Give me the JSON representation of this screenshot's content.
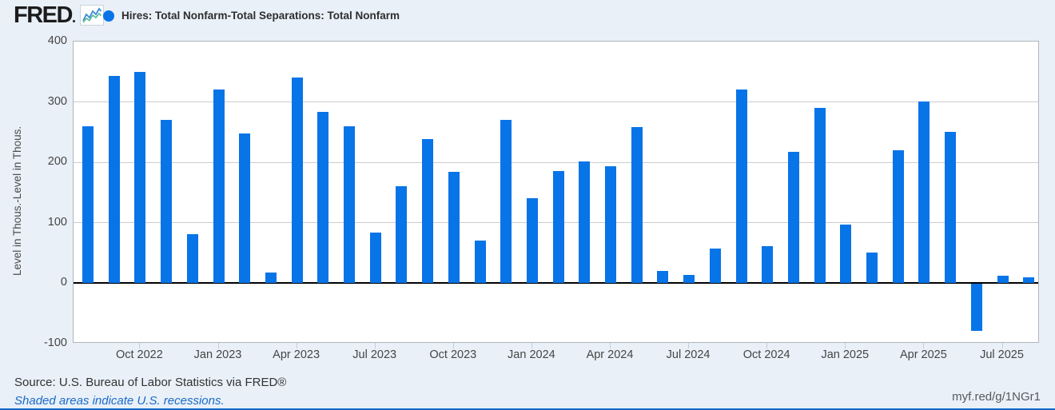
{
  "colors": {
    "bar_blue": "#0774e8",
    "page_background": "#e9f0f8",
    "link_blue": "#1b6ac9",
    "zero_line": "#000000",
    "gridline": "#cccccc",
    "bottom_border_blue": "#1567c8"
  },
  "header": {
    "logo_text": "FRED",
    "logo_icon": "fred-sparkline-icon",
    "legend_marker_color": "#0774e8",
    "series_title": "Hires: Total Nonfarm-Total Separations: Total Nonfarm"
  },
  "chart_data": {
    "type": "bar",
    "title": "Hires: Total Nonfarm-Total Separations: Total Nonfarm",
    "xlabel": "",
    "ylabel": "Level in Thous.-Level in Thous.",
    "ylim": [
      -100,
      400
    ],
    "y_ticks": [
      400,
      300,
      200,
      100,
      0,
      -100
    ],
    "gridline_values": [
      300,
      200,
      100
    ],
    "grid": true,
    "legend_position": "top-left",
    "bar_color": "#0774e8",
    "categories": [
      "Aug 2022",
      "Sep 2022",
      "Oct 2022",
      "Nov 2022",
      "Dec 2022",
      "Jan 2023",
      "Feb 2023",
      "Mar 2023",
      "Apr 2023",
      "May 2023",
      "Jun 2023",
      "Jul 2023",
      "Aug 2023",
      "Sep 2023",
      "Oct 2023",
      "Nov 2023",
      "Dec 2023",
      "Jan 2024",
      "Feb 2024",
      "Mar 2024",
      "Apr 2024",
      "May 2024",
      "Jun 2024",
      "Jul 2024",
      "Aug 2024",
      "Sep 2024",
      "Oct 2024",
      "Nov 2024",
      "Dec 2024",
      "Jan 2025",
      "Feb 2025",
      "Mar 2025",
      "Apr 2025",
      "May 2025",
      "Jun 2025",
      "Jul 2025",
      "Aug 2025"
    ],
    "values": [
      260,
      343,
      350,
      270,
      81,
      320,
      248,
      18,
      341,
      284,
      260,
      84,
      161,
      238,
      185,
      70,
      271,
      141,
      186,
      202,
      194,
      258,
      21,
      14,
      58,
      321,
      62,
      218,
      290,
      97,
      51,
      220,
      301,
      251,
      -78,
      13,
      10
    ],
    "x_tick_labels": [
      "Oct 2022",
      "Jan 2023",
      "Apr 2023",
      "Jul 2023",
      "Oct 2023",
      "Jan 2024",
      "Apr 2024",
      "Jul 2024",
      "Oct 2024",
      "Jan 2025",
      "Apr 2025",
      "Jul 2025"
    ],
    "x_tick_start_index": 2,
    "x_tick_step": 3
  },
  "footer": {
    "source_text": "Source: U.S. Bureau of Labor Statistics via FRED®",
    "recession_note": "Shaded areas indicate U.S. recessions.",
    "permalink": "myf.red/g/1NGr1"
  }
}
